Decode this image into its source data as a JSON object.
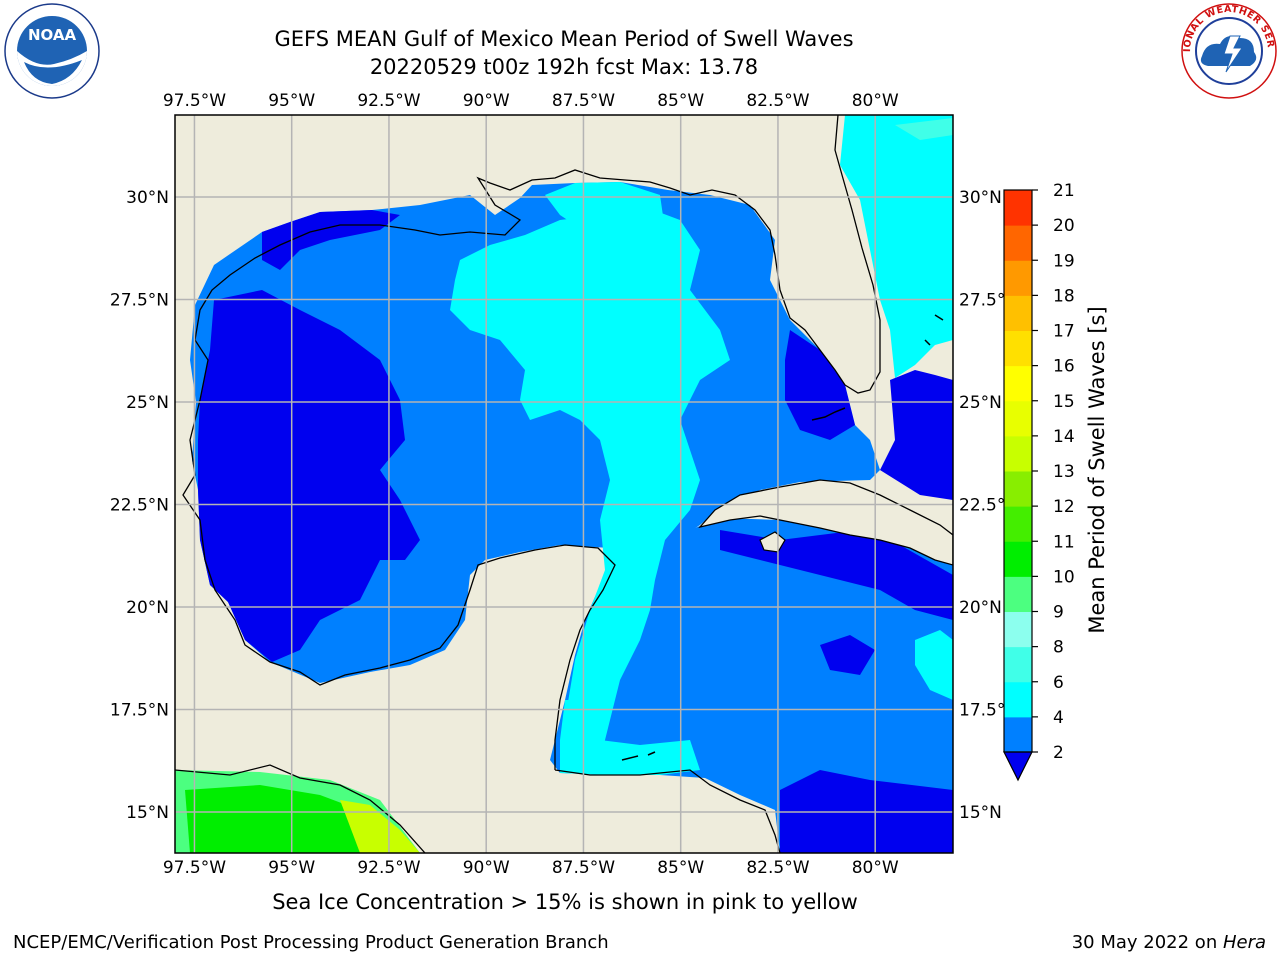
{
  "header": {
    "title_line1": "GEFS MEAN Gulf of Mexico Mean Period of Swell Waves",
    "title_line2": "20220529 t00z 192h fcst   Max: 13.78"
  },
  "logos": {
    "left": "NOAA",
    "left_ring_text": "NATIONAL OCEANIC AND ATMOSPHERIC ADMINISTRATION · U.S. DEPARTMENT OF COMMERCE",
    "right_ring_text": "NATIONAL WEATHER SERVICE"
  },
  "map": {
    "lon_labels": [
      "97.5°W",
      "95°W",
      "92.5°W",
      "90°W",
      "87.5°W",
      "85°W",
      "82.5°W",
      "80°W"
    ],
    "lat_labels": [
      "30°N",
      "27.5°N",
      "25°N",
      "22.5°N",
      "20°N",
      "17.5°N",
      "15°N"
    ],
    "lon_range": [
      -98,
      -78
    ],
    "lat_range": [
      14,
      32
    ],
    "colors": {
      "land": "#eeecdc",
      "coast": "#000000",
      "grid": "#b4b4b4",
      "level_2_4": "#0080ff",
      "level_0_2": "#0000ef",
      "level_4_6": "#00ffff",
      "level_6_8": "#40ffe8",
      "level_10_11": "#00e800",
      "level_11_12": "#33f000",
      "level_12_13": "#c8ff00"
    }
  },
  "colorbar": {
    "label": "Mean Period of Swell Waves [s]",
    "ticks": [
      "2",
      "4",
      "6",
      "8",
      "9",
      "10",
      "11",
      "12",
      "13",
      "14",
      "15",
      "16",
      "17",
      "18",
      "19",
      "20",
      "21"
    ],
    "bin_colors": [
      "#0080ff",
      "#00ffff",
      "#40ffe8",
      "#8cffee",
      "#4cff80",
      "#00ee00",
      "#44ee00",
      "#88ee00",
      "#c8ff00",
      "#e8ff00",
      "#ffff00",
      "#ffe000",
      "#ffc000",
      "#ff9900",
      "#ff6600",
      "#ff3300"
    ],
    "extend_color": "#0000ef"
  },
  "subtitle": "Sea Ice Concentration > 15% is shown in pink to yellow",
  "footer": {
    "left": "NCEP/EMC/Verification Post Processing Product Generation Branch",
    "right_date": "30 May 2022 on ",
    "right_host": "Hera"
  }
}
